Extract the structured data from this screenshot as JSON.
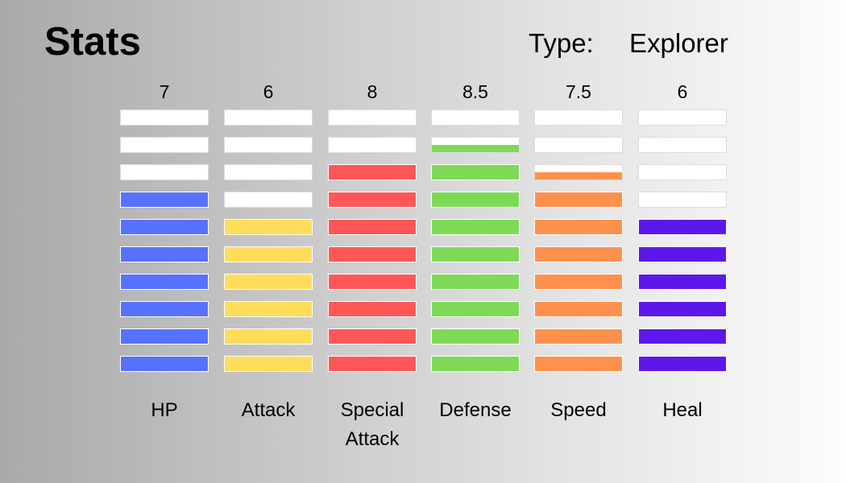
{
  "header": {
    "title": "Stats",
    "type_label": "Type:",
    "type_value": "Explorer"
  },
  "stats": [
    {
      "label": "HP",
      "value_text": "7",
      "value": 7,
      "color": "#5672ff"
    },
    {
      "label": "Attack",
      "value_text": "6",
      "value": 6,
      "color": "#ffdc5a"
    },
    {
      "label": "Special Attack",
      "value_text": "8",
      "value": 8,
      "color": "#ff5758"
    },
    {
      "label": "Defense",
      "value_text": "8.5",
      "value": 8.5,
      "color": "#7ed957"
    },
    {
      "label": "Speed",
      "value_text": "7.5",
      "value": 7.5,
      "color": "#ff914d"
    },
    {
      "label": "Heal",
      "value_text": "6",
      "value": 6,
      "color": "#5e17eb"
    }
  ],
  "max_value": 10
}
